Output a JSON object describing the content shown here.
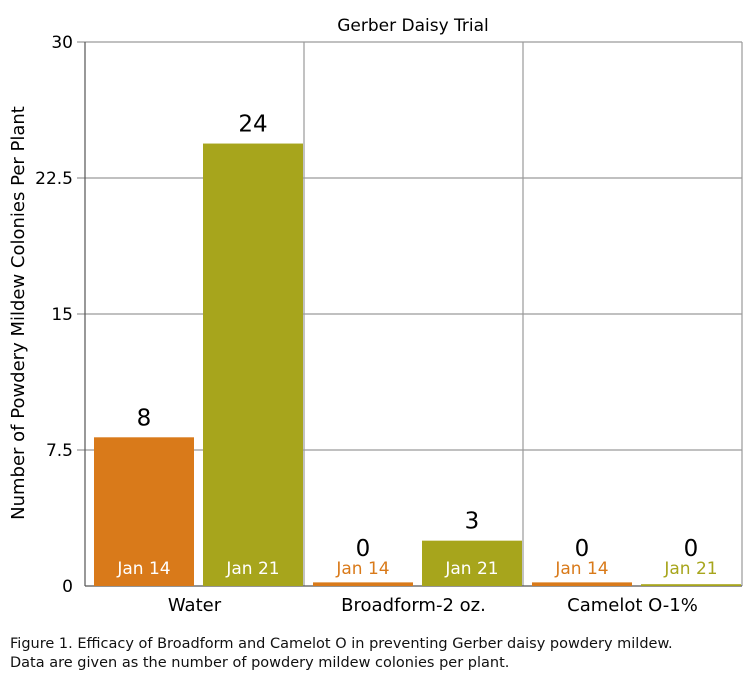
{
  "chart_data": {
    "type": "bar",
    "title": "Gerber Daisy Trial",
    "xlabel": "",
    "ylabel": "Number of Powdery Mildew Colonies Per Plant",
    "ylim": [
      0,
      30
    ],
    "yticks": [
      "0",
      "7.5",
      "15",
      "22.5",
      "30"
    ],
    "categories": [
      "Water",
      "Broadform-2 oz.",
      "Camelot O-1%"
    ],
    "series": [
      {
        "name": "Jan 14",
        "color": "#D97A1A",
        "values": [
          8.2,
          0.2,
          0.2
        ],
        "labels": [
          "8",
          "0",
          "0"
        ]
      },
      {
        "name": "Jan 21",
        "color": "#A7A51C",
        "values": [
          24.4,
          2.5,
          0.1
        ],
        "labels": [
          "24",
          "3",
          "0"
        ]
      }
    ],
    "grid": true
  },
  "caption": {
    "line1": "Figure 1. Efficacy of Broadform and Camelot O in preventing Gerber daisy powdery mildew.",
    "line2": "Data are given as the number of powdery mildew colonies per plant."
  }
}
